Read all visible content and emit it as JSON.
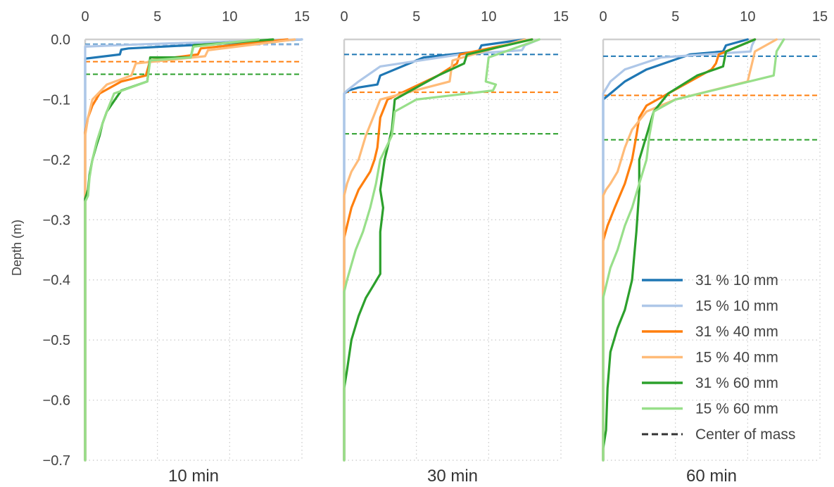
{
  "chart_data": {
    "type": "line",
    "ylabel": "Depth (m)",
    "xlim": [
      0,
      15
    ],
    "ylim": [
      -0.7,
      0.0
    ],
    "xticks": [
      "0",
      "5",
      "10",
      "15"
    ],
    "yticks": [
      "0.0",
      "−0.1",
      "−0.2",
      "−0.3",
      "−0.4",
      "−0.5",
      "−0.6",
      "−0.7"
    ],
    "ytick_values": [
      0.0,
      -0.1,
      -0.2,
      -0.3,
      -0.4,
      -0.5,
      -0.6,
      -0.7
    ],
    "grid": true,
    "legend_position": "bottom-right of last panel",
    "colors": {
      "31 % 10 mm": "#1f77b4",
      "15 % 10 mm": "#aec7e8",
      "31 % 40 mm": "#ff7f0e",
      "15 % 40 mm": "#ffbb78",
      "31 % 60 mm": "#2ca02c",
      "15 % 60 mm": "#98df8a",
      "Center of mass": "#333333"
    },
    "legend": [
      "31 % 10 mm",
      "15 % 10 mm",
      "31 % 40 mm",
      "15 % 40 mm",
      "31 % 60 mm",
      "15 % 60 mm",
      "Center of mass"
    ],
    "panels": [
      {
        "title": "10 min",
        "series": [
          {
            "name": "31 % 10 mm",
            "x": [
              15.0,
              3.0,
              2.5,
              2.4,
              0.0,
              0.0
            ],
            "y": [
              0.0,
              -0.015,
              -0.017,
              -0.025,
              -0.032,
              -0.7
            ]
          },
          {
            "name": "15 % 10 mm",
            "x": [
              15.0,
              4.0,
              0.0,
              0.0
            ],
            "y": [
              0.0,
              -0.008,
              -0.012,
              -0.7
            ]
          },
          {
            "name": "31 % 40 mm",
            "x": [
              14.0,
              8.0,
              7.8,
              4.5,
              4.2,
              2.5,
              1.0,
              0.5,
              0.2,
              0.0,
              0.0
            ],
            "y": [
              0.0,
              -0.015,
              -0.025,
              -0.035,
              -0.06,
              -0.07,
              -0.09,
              -0.11,
              -0.13,
              -0.155,
              -0.7
            ]
          },
          {
            "name": "15 % 40 mm",
            "x": [
              14.5,
              8.5,
              8.3,
              3.5,
              3.2,
              1.5,
              0.5,
              0.2,
              0.0,
              0.0
            ],
            "y": [
              0.0,
              -0.018,
              -0.028,
              -0.04,
              -0.06,
              -0.075,
              -0.1,
              -0.13,
              -0.16,
              -0.7
            ]
          },
          {
            "name": "31 % 60 mm",
            "x": [
              13.0,
              7.5,
              7.3,
              4.5,
              4.3,
              2.5,
              1.5,
              1.2,
              1.0,
              0.8,
              0.5,
              0.3,
              0.2,
              0.0,
              0.0
            ],
            "y": [
              0.0,
              -0.01,
              -0.03,
              -0.03,
              -0.07,
              -0.085,
              -0.12,
              -0.14,
              -0.16,
              -0.175,
              -0.2,
              -0.225,
              -0.25,
              -0.265,
              -0.7
            ]
          },
          {
            "name": "15 % 60 mm",
            "x": [
              12.0,
              7.5,
              7.3,
              4.5,
              4.3,
              2.0,
              1.5,
              1.2,
              0.8,
              0.5,
              0.3,
              0.2,
              0.0,
              0.0
            ],
            "y": [
              0.0,
              -0.012,
              -0.03,
              -0.035,
              -0.07,
              -0.09,
              -0.12,
              -0.14,
              -0.17,
              -0.2,
              -0.23,
              -0.26,
              -0.27,
              -0.7
            ]
          }
        ],
        "center_of_mass": [
          {
            "name": "31 % 10 mm",
            "y": -0.008
          },
          {
            "name": "15 % 10 mm",
            "y": -0.009
          },
          {
            "name": "31 % 40 mm",
            "y": -0.037
          },
          {
            "name": "31 % 60 mm",
            "y": -0.058
          }
        ]
      },
      {
        "title": "30 min",
        "series": [
          {
            "name": "31 % 10 mm",
            "x": [
              12.5,
              9.5,
              9.3,
              5.5,
              2.5,
              2.3,
              1.0,
              0.3,
              0.0,
              0.0
            ],
            "y": [
              0.0,
              -0.01,
              -0.02,
              -0.03,
              -0.06,
              -0.075,
              -0.08,
              -0.085,
              -0.09,
              -0.7
            ]
          },
          {
            "name": "15 % 10 mm",
            "x": [
              13.5,
              12.5,
              12.3,
              8.0,
              2.5,
              1.0,
              0.2,
              0.0,
              0.0
            ],
            "y": [
              0.0,
              -0.01,
              -0.018,
              -0.025,
              -0.045,
              -0.07,
              -0.085,
              -0.09,
              -0.7
            ]
          },
          {
            "name": "31 % 40 mm",
            "x": [
              13.0,
              8.0,
              7.8,
              6.5,
              3.0,
              2.5,
              2.3,
              2.1,
              1.8,
              1.0,
              0.5,
              0.2,
              0.0,
              0.0
            ],
            "y": [
              0.0,
              -0.025,
              -0.04,
              -0.06,
              -0.1,
              -0.13,
              -0.18,
              -0.2,
              -0.22,
              -0.25,
              -0.28,
              -0.31,
              -0.33,
              -0.7
            ]
          },
          {
            "name": "15 % 40 mm",
            "x": [
              12.5,
              7.5,
              7.3,
              2.5,
              2.0,
              1.5,
              1.0,
              0.5,
              0.2,
              0.0,
              0.0
            ],
            "y": [
              0.0,
              -0.035,
              -0.07,
              -0.1,
              -0.13,
              -0.16,
              -0.2,
              -0.22,
              -0.24,
              -0.26,
              -0.7
            ]
          },
          {
            "name": "31 % 60 mm",
            "x": [
              13.0,
              8.5,
              8.3,
              6.5,
              3.5,
              3.3,
              2.8,
              2.5,
              2.7,
              2.5,
              2.5,
              2.0,
              1.5,
              1.0,
              0.5,
              0.2,
              0.0,
              0.0
            ],
            "y": [
              0.0,
              -0.025,
              -0.04,
              -0.06,
              -0.1,
              -0.15,
              -0.2,
              -0.25,
              -0.28,
              -0.32,
              -0.39,
              -0.41,
              -0.43,
              -0.46,
              -0.5,
              -0.55,
              -0.58,
              -0.7
            ]
          },
          {
            "name": "15 % 60 mm",
            "x": [
              13.5,
              10.0,
              9.8,
              10.5,
              10.3,
              5.0,
              3.5,
              3.3,
              2.5,
              2.2,
              1.8,
              1.3,
              0.8,
              0.2,
              0.0,
              0.0
            ],
            "y": [
              0.0,
              -0.03,
              -0.07,
              -0.075,
              -0.085,
              -0.1,
              -0.12,
              -0.16,
              -0.2,
              -0.24,
              -0.28,
              -0.32,
              -0.35,
              -0.4,
              -0.42,
              -0.7
            ]
          }
        ],
        "center_of_mass": [
          {
            "name": "31 % 10 mm",
            "y": -0.025
          },
          {
            "name": "31 % 40 mm",
            "y": -0.088
          },
          {
            "name": "31 % 60 mm",
            "y": -0.157
          }
        ]
      },
      {
        "title": "60 min",
        "series": [
          {
            "name": "31 % 10 mm",
            "x": [
              10.0,
              8.5,
              8.3,
              6.0,
              3.0,
              1.5,
              0.5,
              0.0,
              0.0
            ],
            "y": [
              0.0,
              -0.01,
              -0.02,
              -0.025,
              -0.05,
              -0.07,
              -0.09,
              -0.1,
              -0.7
            ]
          },
          {
            "name": "15 % 10 mm",
            "x": [
              10.5,
              10.3,
              10.2,
              4.0,
              1.5,
              0.5,
              0.0,
              0.0
            ],
            "y": [
              0.0,
              -0.01,
              -0.02,
              -0.03,
              -0.05,
              -0.07,
              -0.09,
              -0.7
            ]
          },
          {
            "name": "31 % 40 mm",
            "x": [
              10.5,
              8.0,
              7.8,
              7.5,
              4.5,
              3.0,
              2.5,
              2.3,
              2.0,
              1.5,
              0.8,
              0.3,
              0.0,
              0.0
            ],
            "y": [
              0.0,
              -0.025,
              -0.04,
              -0.05,
              -0.09,
              -0.11,
              -0.13,
              -0.16,
              -0.2,
              -0.24,
              -0.28,
              -0.31,
              -0.335,
              -0.7
            ]
          },
          {
            "name": "15 % 40 mm",
            "x": [
              12.0,
              10.5,
              10.3,
              10.0,
              5.0,
              3.0,
              2.0,
              1.5,
              1.0,
              0.5,
              0.2,
              0.0,
              0.0
            ],
            "y": [
              0.0,
              -0.02,
              -0.04,
              -0.07,
              -0.1,
              -0.12,
              -0.15,
              -0.18,
              -0.22,
              -0.24,
              -0.25,
              -0.26,
              -0.7
            ]
          },
          {
            "name": "31 % 60 mm",
            "x": [
              10.5,
              8.5,
              8.3,
              6.5,
              4.5,
              3.5,
              3.0,
              2.5,
              2.5,
              2.3,
              2.0,
              1.5,
              1.0,
              0.5,
              0.3,
              0.2,
              0.0,
              0.0
            ],
            "y": [
              0.0,
              -0.02,
              -0.045,
              -0.06,
              -0.09,
              -0.12,
              -0.16,
              -0.2,
              -0.25,
              -0.32,
              -0.4,
              -0.45,
              -0.48,
              -0.52,
              -0.58,
              -0.65,
              -0.68,
              -0.7
            ]
          },
          {
            "name": "15 % 60 mm",
            "x": [
              12.5,
              12.0,
              11.8,
              5.0,
              3.5,
              3.2,
              3.0,
              2.5,
              2.0,
              1.5,
              1.0,
              0.5,
              0.2,
              0.0,
              0.0
            ],
            "y": [
              0.0,
              -0.02,
              -0.06,
              -0.1,
              -0.12,
              -0.16,
              -0.2,
              -0.24,
              -0.28,
              -0.31,
              -0.35,
              -0.38,
              -0.41,
              -0.43,
              -0.7
            ]
          }
        ],
        "center_of_mass": [
          {
            "name": "31 % 10 mm",
            "y": -0.028
          },
          {
            "name": "31 % 40 mm",
            "y": -0.093
          },
          {
            "name": "31 % 60 mm",
            "y": -0.167
          }
        ]
      }
    ]
  }
}
